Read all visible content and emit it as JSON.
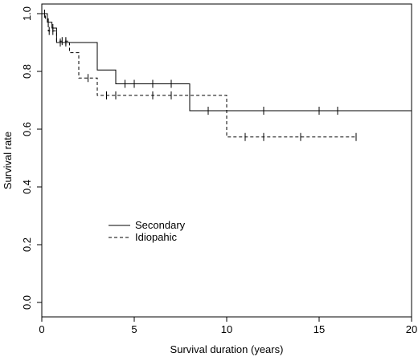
{
  "chart_data": {
    "type": "line",
    "title": "",
    "xlabel": "Survival duration (years)",
    "ylabel": "Survival rate",
    "xlim": [
      0,
      20
    ],
    "ylim": [
      0,
      1.0
    ],
    "xticks": [
      "0",
      "5",
      "10",
      "15",
      "20"
    ],
    "yticks": [
      "0.0",
      "0.2",
      "0.4",
      "0.6",
      "0.8",
      "1.0"
    ],
    "grid": false,
    "legend_position": "center-left",
    "series": [
      {
        "name": "Secondary",
        "line_style": "solid",
        "color": "#000000",
        "steps": [
          [
            0,
            1.0
          ],
          [
            0.3,
            0.97
          ],
          [
            0.55,
            0.95
          ],
          [
            0.8,
            0.9
          ],
          [
            3.0,
            0.805
          ],
          [
            4.0,
            0.757
          ],
          [
            8.0,
            0.664
          ],
          [
            20.0,
            0.664
          ]
        ],
        "censored": [
          [
            0.15,
            1.0
          ],
          [
            0.35,
            0.97
          ],
          [
            0.6,
            0.95
          ],
          [
            1.0,
            0.9
          ],
          [
            1.3,
            0.9
          ],
          [
            4.5,
            0.757
          ],
          [
            5.0,
            0.757
          ],
          [
            6.0,
            0.757
          ],
          [
            7.0,
            0.757
          ],
          [
            9.0,
            0.664
          ],
          [
            12.0,
            0.664
          ],
          [
            15.0,
            0.664
          ],
          [
            16.0,
            0.664
          ]
        ]
      },
      {
        "name": "Idiopahic",
        "line_style": "dashed",
        "color": "#000000",
        "steps": [
          [
            0,
            1.0
          ],
          [
            0.2,
            0.98
          ],
          [
            0.35,
            0.94
          ],
          [
            0.8,
            0.905
          ],
          [
            1.5,
            0.865
          ],
          [
            2.0,
            0.777
          ],
          [
            3.0,
            0.717
          ],
          [
            10.0,
            0.573
          ],
          [
            17.0,
            0.573
          ]
        ],
        "censored": [
          [
            0.4,
            0.94
          ],
          [
            0.6,
            0.94
          ],
          [
            1.1,
            0.905
          ],
          [
            1.3,
            0.905
          ],
          [
            2.5,
            0.777
          ],
          [
            3.5,
            0.717
          ],
          [
            4.0,
            0.717
          ],
          [
            6.0,
            0.717
          ],
          [
            7.0,
            0.717
          ],
          [
            11.0,
            0.573
          ],
          [
            12.0,
            0.573
          ],
          [
            14.0,
            0.573
          ],
          [
            17.0,
            0.573
          ]
        ]
      }
    ]
  }
}
